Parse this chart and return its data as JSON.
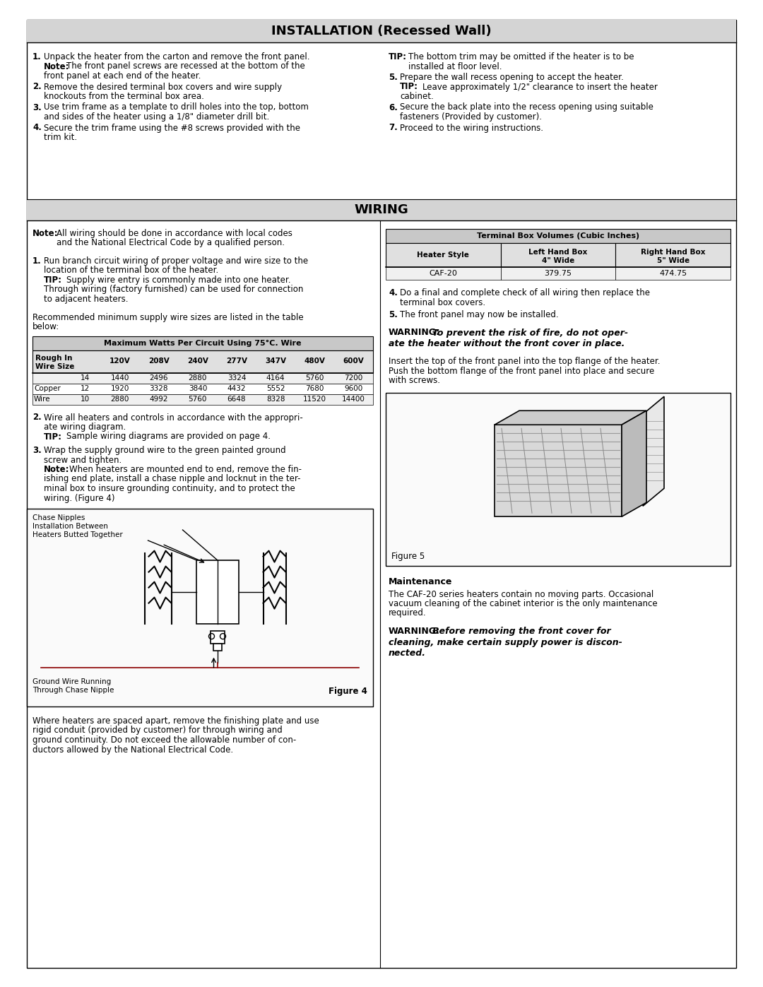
{
  "page_bg": "#ffffff",
  "header_bg": "#d4d4d4",
  "text_color": "#000000",
  "title1": "INSTALLATION (Recessed Wall)",
  "title2": "WIRING",
  "table_title": "Maximum Watts Per Circuit Using 75°C. Wire",
  "terminal_table_title": "Terminal Box Volumes (Cubic Inches)",
  "fig4_caption": "Figure 4",
  "fig5_caption": "Figure 5",
  "maintenance_title": "Maintenance"
}
